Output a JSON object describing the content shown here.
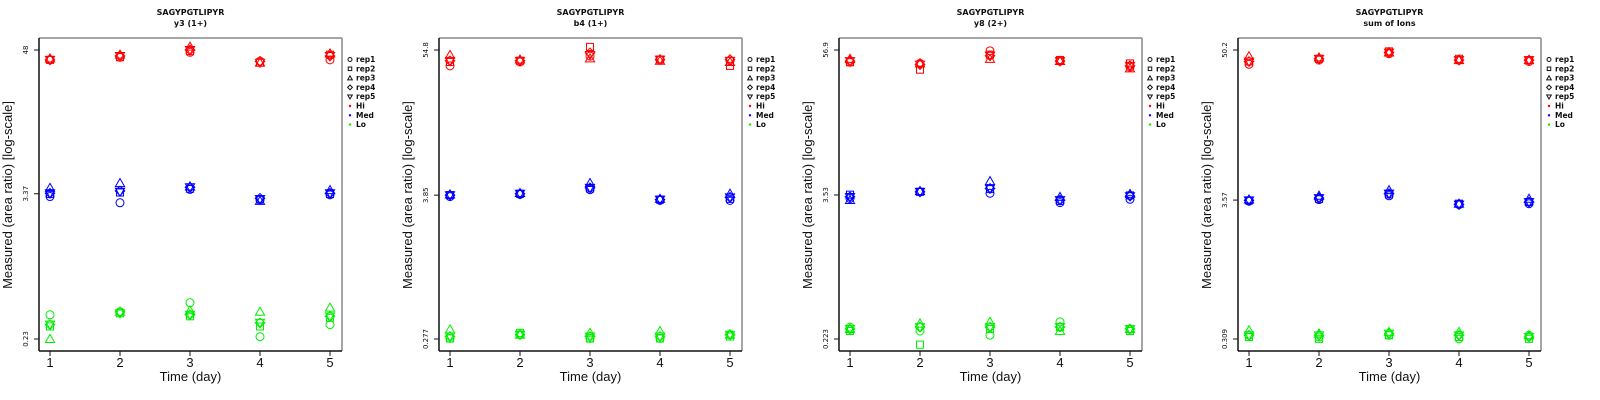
{
  "chart_data": [
    {
      "type": "scatter",
      "title": "SAGYPGTLIPYR",
      "subtitle": "y3 (1+)",
      "xlabel": "Time (day)",
      "ylabel": "Measured (area ratio) [log-scale]",
      "x": [
        1,
        2,
        3,
        4,
        5
      ],
      "x_tick_labels": [
        "1",
        "2",
        "3",
        "4",
        "5"
      ],
      "y_scale": "log",
      "y_tick_labels": [
        "0.23",
        "3.37",
        "48"
      ],
      "y_ticks": [
        0.23,
        3.37,
        48
      ],
      "ylim": [
        0.17,
        62
      ],
      "grid": false,
      "legend_position": "right",
      "series": [
        {
          "group": "Hi",
          "rep": "rep1",
          "values": [
            40,
            42,
            46,
            39,
            40
          ]
        },
        {
          "group": "Hi",
          "rep": "rep2",
          "values": [
            40,
            42,
            47,
            38,
            44
          ]
        },
        {
          "group": "Hi",
          "rep": "rep3",
          "values": [
            41,
            44,
            51,
            38,
            45
          ]
        },
        {
          "group": "Hi",
          "rep": "rep4",
          "values": [
            40,
            43,
            48,
            39,
            43
          ]
        },
        {
          "group": "Hi",
          "rep": "rep5",
          "values": [
            40,
            43,
            48,
            38,
            43
          ]
        },
        {
          "group": "Med",
          "rep": "rep1",
          "values": [
            3.2,
            2.85,
            3.65,
            3.0,
            3.3
          ]
        },
        {
          "group": "Med",
          "rep": "rep2",
          "values": [
            3.35,
            3.45,
            3.7,
            3.05,
            3.35
          ]
        },
        {
          "group": "Med",
          "rep": "rep3",
          "values": [
            3.75,
            4.1,
            3.85,
            2.95,
            3.6
          ]
        },
        {
          "group": "Med",
          "rep": "rep4",
          "values": [
            3.4,
            3.55,
            3.8,
            3.1,
            3.4
          ]
        },
        {
          "group": "Med",
          "rep": "rep5",
          "values": [
            3.4,
            3.5,
            3.8,
            3.05,
            3.4
          ]
        },
        {
          "group": "Lo",
          "rep": "rep1",
          "values": [
            0.36,
            0.38,
            0.45,
            0.24,
            0.3
          ]
        },
        {
          "group": "Lo",
          "rep": "rep2",
          "values": [
            0.29,
            0.37,
            0.35,
            0.29,
            0.34
          ]
        },
        {
          "group": "Lo",
          "rep": "rep3",
          "values": [
            0.23,
            0.38,
            0.39,
            0.38,
            0.41
          ]
        },
        {
          "group": "Lo",
          "rep": "rep4",
          "values": [
            0.3,
            0.38,
            0.36,
            0.31,
            0.35
          ]
        },
        {
          "group": "Lo",
          "rep": "rep5",
          "values": [
            0.3,
            0.37,
            0.36,
            0.31,
            0.35
          ]
        }
      ]
    },
    {
      "type": "scatter",
      "title": "SAGYPGTLIPYR",
      "subtitle": "b4 (1+)",
      "xlabel": "Time (day)",
      "ylabel": "Measured (area ratio) [log-scale]",
      "x": [
        1,
        2,
        3,
        4,
        5
      ],
      "x_tick_labels": [
        "1",
        "2",
        "3",
        "4",
        "5"
      ],
      "y_scale": "log",
      "y_tick_labels": [
        "0.277",
        "3.85",
        "54.8"
      ],
      "y_ticks": [
        0.277,
        3.85,
        54.8
      ],
      "ylim": [
        0.2,
        70
      ],
      "grid": false,
      "legend_position": "right",
      "series": [
        {
          "group": "Hi",
          "rep": "rep1",
          "values": [
            41,
            44,
            49,
            46,
            45
          ]
        },
        {
          "group": "Hi",
          "rep": "rep2",
          "values": [
            44,
            45,
            58,
            46,
            41
          ]
        },
        {
          "group": "Hi",
          "rep": "rep3",
          "values": [
            50,
            46,
            47,
            45,
            44
          ]
        },
        {
          "group": "Hi",
          "rep": "rep4",
          "values": [
            45,
            45,
            52,
            46,
            46
          ]
        },
        {
          "group": "Hi",
          "rep": "rep5",
          "values": [
            45,
            45,
            50,
            46,
            45
          ]
        },
        {
          "group": "Med",
          "rep": "rep1",
          "values": [
            3.75,
            3.9,
            4.25,
            3.5,
            3.5
          ]
        },
        {
          "group": "Med",
          "rep": "rep2",
          "values": [
            3.85,
            3.95,
            4.35,
            3.55,
            3.6
          ]
        },
        {
          "group": "Med",
          "rep": "rep3",
          "values": [
            3.9,
            4.0,
            4.8,
            3.6,
            3.95
          ]
        },
        {
          "group": "Med",
          "rep": "rep4",
          "values": [
            3.85,
            3.95,
            4.4,
            3.55,
            3.7
          ]
        },
        {
          "group": "Med",
          "rep": "rep5",
          "values": [
            3.85,
            3.95,
            4.4,
            3.55,
            3.7
          ]
        },
        {
          "group": "Lo",
          "rep": "rep1",
          "values": [
            0.28,
            0.3,
            0.28,
            0.28,
            0.3
          ]
        },
        {
          "group": "Lo",
          "rep": "rep2",
          "values": [
            0.28,
            0.31,
            0.28,
            0.28,
            0.29
          ]
        },
        {
          "group": "Lo",
          "rep": "rep3",
          "values": [
            0.33,
            0.3,
            0.31,
            0.32,
            0.3
          ]
        },
        {
          "group": "Lo",
          "rep": "rep4",
          "values": [
            0.29,
            0.3,
            0.29,
            0.29,
            0.3
          ]
        },
        {
          "group": "Lo",
          "rep": "rep5",
          "values": [
            0.29,
            0.3,
            0.29,
            0.29,
            0.3
          ]
        }
      ]
    },
    {
      "type": "scatter",
      "title": "SAGYPGTLIPYR",
      "subtitle": "y8 (2+)",
      "xlabel": "Time (day)",
      "ylabel": "Measured (area ratio) [log-scale]",
      "x": [
        1,
        2,
        3,
        4,
        5
      ],
      "x_tick_labels": [
        "1",
        "2",
        "3",
        "4",
        "5"
      ],
      "y_scale": "log",
      "y_tick_labels": [
        "0.223",
        "3.53",
        "56.9"
      ],
      "y_ticks": [
        0.223,
        3.53,
        56.9
      ],
      "ylim": [
        0.16,
        73
      ],
      "grid": false,
      "legend_position": "right",
      "series": [
        {
          "group": "Hi",
          "rep": "rep1",
          "values": [
            45,
            44,
            56,
            46,
            41
          ]
        },
        {
          "group": "Hi",
          "rep": "rep2",
          "values": [
            45,
            39,
            52,
            47,
            44
          ]
        },
        {
          "group": "Hi",
          "rep": "rep3",
          "values": [
            48,
            44,
            48,
            46,
            40
          ]
        },
        {
          "group": "Hi",
          "rep": "rep4",
          "values": [
            46,
            43,
            51,
            46,
            42
          ]
        },
        {
          "group": "Hi",
          "rep": "rep5",
          "values": [
            46,
            43,
            51,
            46,
            42
          ]
        },
        {
          "group": "Med",
          "rep": "rep1",
          "values": [
            3.3,
            3.75,
            3.65,
            3.05,
            3.25
          ]
        },
        {
          "group": "Med",
          "rep": "rep2",
          "values": [
            3.55,
            3.75,
            3.95,
            3.15,
            3.5
          ]
        },
        {
          "group": "Med",
          "rep": "rep3",
          "values": [
            3.2,
            3.8,
            4.6,
            3.4,
            3.6
          ]
        },
        {
          "group": "Med",
          "rep": "rep4",
          "values": [
            3.4,
            3.75,
            4.0,
            3.2,
            3.45
          ]
        },
        {
          "group": "Med",
          "rep": "rep5",
          "values": [
            3.4,
            3.75,
            4.0,
            3.2,
            3.45
          ]
        },
        {
          "group": "Lo",
          "rep": "rep1",
          "values": [
            0.28,
            0.26,
            0.24,
            0.31,
            0.27
          ]
        },
        {
          "group": "Lo",
          "rep": "rep2",
          "values": [
            0.26,
            0.2,
            0.27,
            0.28,
            0.26
          ]
        },
        {
          "group": "Lo",
          "rep": "rep3",
          "values": [
            0.27,
            0.3,
            0.31,
            0.26,
            0.27
          ]
        },
        {
          "group": "Lo",
          "rep": "rep4",
          "values": [
            0.27,
            0.28,
            0.28,
            0.28,
            0.27
          ]
        },
        {
          "group": "Lo",
          "rep": "rep5",
          "values": [
            0.27,
            0.28,
            0.28,
            0.28,
            0.27
          ]
        }
      ]
    },
    {
      "type": "scatter",
      "title": "SAGYPGTLIPYR",
      "subtitle": "sum of Ions",
      "xlabel": "Time (day)",
      "ylabel": "Measured (area ratio) [log-scale]",
      "x": [
        1,
        2,
        3,
        4,
        5
      ],
      "x_tick_labels": [
        "1",
        "2",
        "3",
        "4",
        "5"
      ],
      "y_scale": "log",
      "y_tick_labels": [
        "0.309",
        "3.57",
        "50.2"
      ],
      "y_ticks": [
        0.309,
        3.57,
        50.2
      ],
      "ylim": [
        0.23,
        64
      ],
      "grid": false,
      "legend_position": "right",
      "series": [
        {
          "group": "Hi",
          "rep": "rep1",
          "values": [
            39,
            42,
            47,
            42,
            41
          ]
        },
        {
          "group": "Hi",
          "rep": "rep2",
          "values": [
            41,
            43,
            49,
            43,
            42
          ]
        },
        {
          "group": "Hi",
          "rep": "rep3",
          "values": [
            45,
            44,
            48,
            42,
            42
          ]
        },
        {
          "group": "Hi",
          "rep": "rep4",
          "values": [
            41,
            43,
            48,
            42,
            42
          ]
        },
        {
          "group": "Hi",
          "rep": "rep5",
          "values": [
            41,
            43,
            48,
            42,
            42
          ]
        },
        {
          "group": "Med",
          "rep": "rep1",
          "values": [
            3.5,
            3.6,
            3.85,
            3.3,
            3.35
          ]
        },
        {
          "group": "Med",
          "rep": "rep2",
          "values": [
            3.55,
            3.65,
            3.95,
            3.35,
            3.45
          ]
        },
        {
          "group": "Med",
          "rep": "rep3",
          "values": [
            3.6,
            3.85,
            4.25,
            3.35,
            3.65
          ]
        },
        {
          "group": "Med",
          "rep": "rep4",
          "values": [
            3.55,
            3.7,
            4.0,
            3.3,
            3.45
          ]
        },
        {
          "group": "Med",
          "rep": "rep5",
          "values": [
            3.55,
            3.7,
            4.0,
            3.3,
            3.45
          ]
        },
        {
          "group": "Lo",
          "rep": "rep1",
          "values": [
            0.33,
            0.32,
            0.33,
            0.31,
            0.33
          ]
        },
        {
          "group": "Lo",
          "rep": "rep2",
          "values": [
            0.32,
            0.31,
            0.33,
            0.32,
            0.31
          ]
        },
        {
          "group": "Lo",
          "rep": "rep3",
          "values": [
            0.36,
            0.34,
            0.35,
            0.35,
            0.33
          ]
        },
        {
          "group": "Lo",
          "rep": "rep4",
          "values": [
            0.33,
            0.33,
            0.34,
            0.33,
            0.32
          ]
        },
        {
          "group": "Lo",
          "rep": "rep5",
          "values": [
            0.33,
            0.33,
            0.34,
            0.33,
            0.32
          ]
        }
      ]
    }
  ],
  "legend": {
    "shapes": [
      {
        "label": "rep1",
        "symbol": "circle"
      },
      {
        "label": "rep2",
        "symbol": "square"
      },
      {
        "label": "rep3",
        "symbol": "triangle-up"
      },
      {
        "label": "rep4",
        "symbol": "diamond"
      },
      {
        "label": "rep5",
        "symbol": "triangle-down"
      }
    ],
    "groups": [
      {
        "label": "Hi",
        "color": "#ff0000"
      },
      {
        "label": "Med",
        "color": "#0000ff"
      },
      {
        "label": "Lo",
        "color": "#00ee00"
      }
    ]
  }
}
